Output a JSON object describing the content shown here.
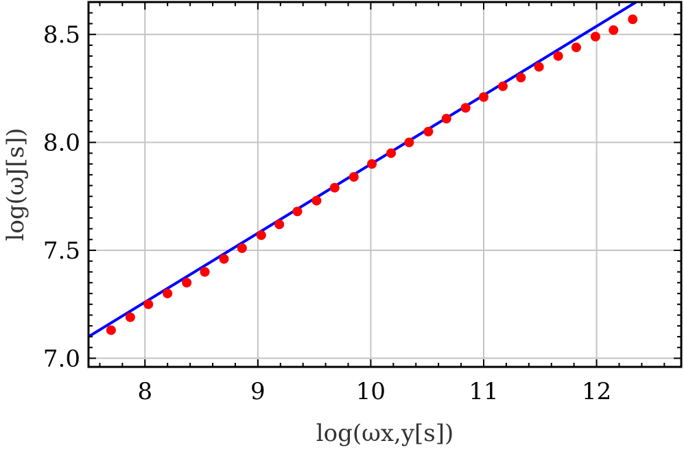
{
  "chart_data": {
    "type": "scatter",
    "title": "",
    "xlabel": "log(ωx,y[s])",
    "ylabel": "log(ωJ[s])",
    "xlim": [
      7.5,
      12.75
    ],
    "ylim": [
      6.96,
      8.65
    ],
    "grid": true,
    "x_ticks": [
      "8",
      "9",
      "10",
      "11",
      "12"
    ],
    "y_ticks": [
      "7.0",
      "7.5",
      "8.0",
      "8.5"
    ],
    "x_tick_values": [
      8,
      9,
      10,
      11,
      12
    ],
    "y_tick_values": [
      7.0,
      7.5,
      8.0,
      8.5
    ],
    "series": [
      {
        "kind": "points",
        "color": "#ff0000",
        "x": [
          7.7,
          7.87,
          8.03,
          8.2,
          8.37,
          8.53,
          8.7,
          8.86,
          9.03,
          9.19,
          9.35,
          9.52,
          9.68,
          9.85,
          10.01,
          10.18,
          10.34,
          10.51,
          10.67,
          10.84,
          11.0,
          11.17,
          11.33,
          11.49,
          11.66,
          11.82,
          11.99,
          12.15,
          12.32
        ],
        "y": [
          7.13,
          7.19,
          7.25,
          7.3,
          7.35,
          7.4,
          7.46,
          7.51,
          7.57,
          7.62,
          7.68,
          7.73,
          7.79,
          7.84,
          7.9,
          7.95,
          8.0,
          8.05,
          8.11,
          8.16,
          8.21,
          8.26,
          8.3,
          8.35,
          8.4,
          8.44,
          8.49,
          8.52,
          8.57
        ]
      },
      {
        "kind": "line",
        "color": "#0000ff",
        "x": [
          7.5,
          12.35
        ],
        "y": [
          7.1,
          8.65
        ]
      }
    ]
  }
}
